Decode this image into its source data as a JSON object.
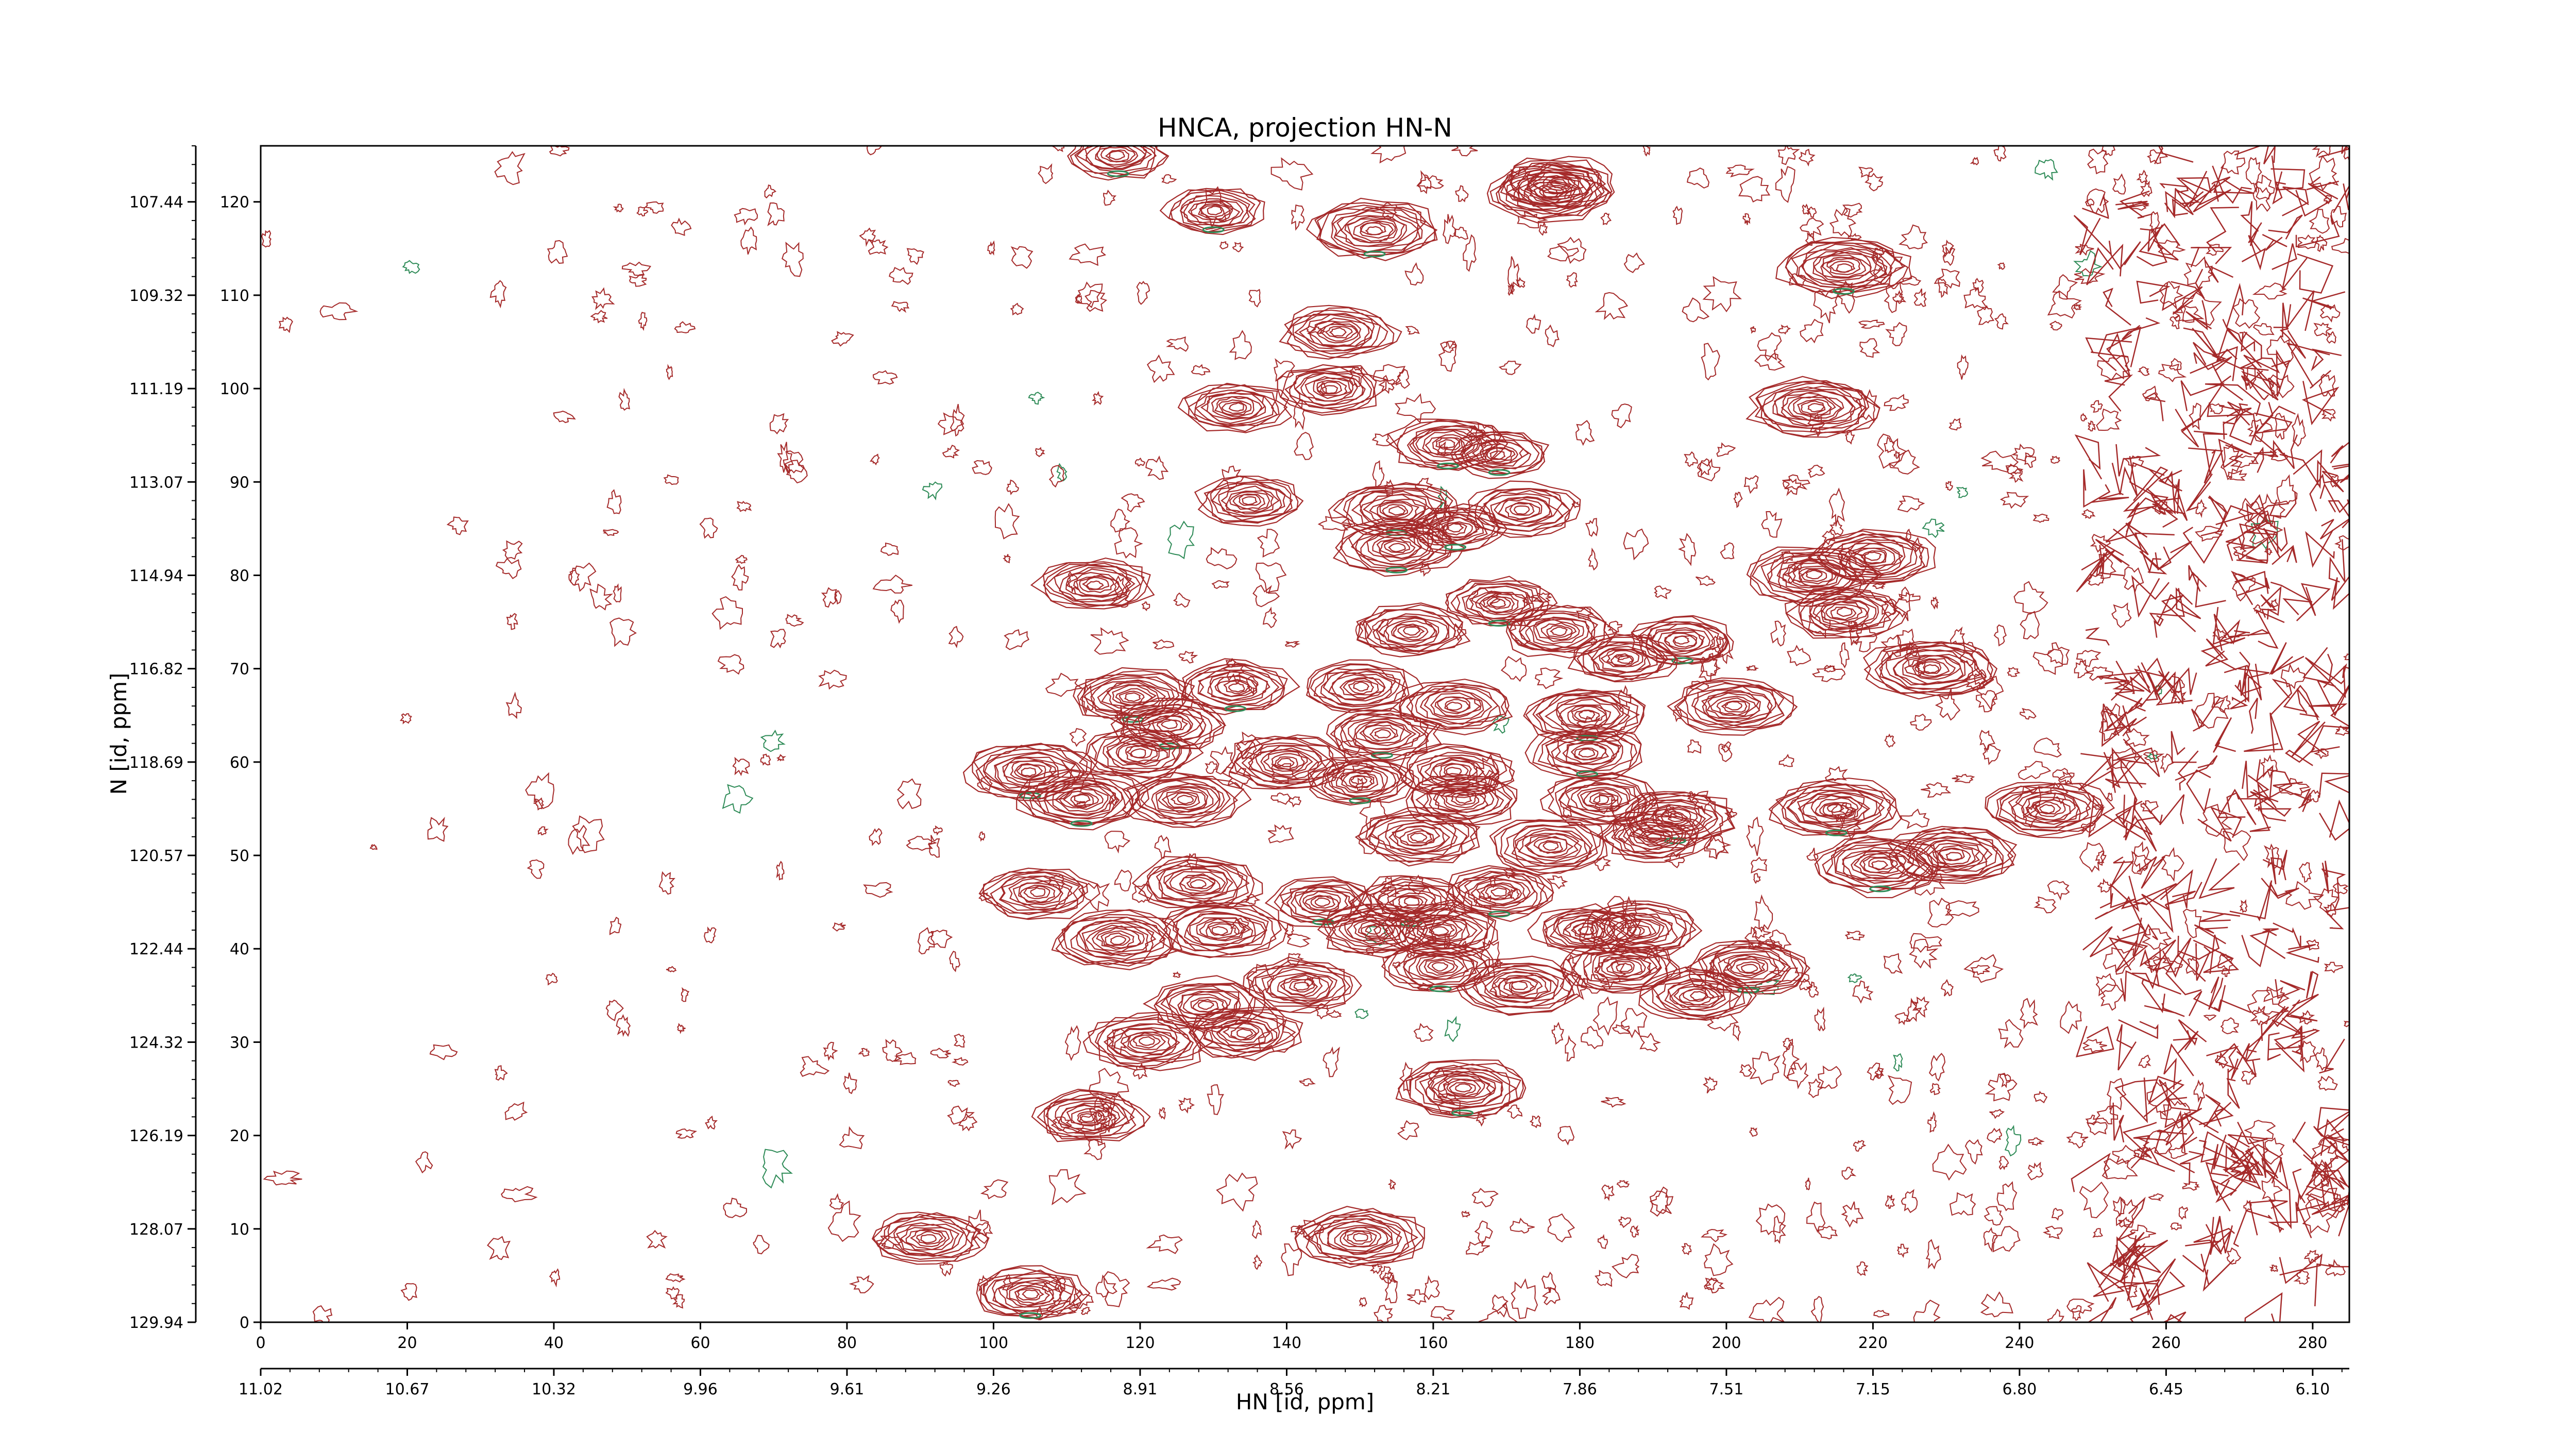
{
  "chart_data": {
    "type": "contour",
    "title": "HNCA, projection HN-N",
    "xlabel": "HN [id, ppm]",
    "ylabel": "N [id, ppm]",
    "xlim": [
      0,
      285
    ],
    "ylim": [
      0,
      126
    ],
    "x_point_ticks": [
      "0",
      "20",
      "40",
      "60",
      "80",
      "100",
      "120",
      "140",
      "160",
      "180",
      "200",
      "220",
      "240",
      "260",
      "280"
    ],
    "x_point_tick_values": [
      0,
      20,
      40,
      60,
      80,
      100,
      120,
      140,
      160,
      180,
      200,
      220,
      240,
      260,
      280
    ],
    "x_ppm_ticks": [
      "11.02",
      "10.67",
      "10.32",
      "9.96",
      "9.61",
      "9.26",
      "8.91",
      "8.56",
      "8.21",
      "7.86",
      "7.51",
      "7.15",
      "6.80",
      "6.45",
      "6.10"
    ],
    "y_point_ticks": [
      "0",
      "10",
      "20",
      "30",
      "40",
      "50",
      "60",
      "70",
      "80",
      "90",
      "100",
      "110",
      "120"
    ],
    "y_point_tick_values": [
      0,
      10,
      20,
      30,
      40,
      50,
      60,
      70,
      80,
      90,
      100,
      110,
      120
    ],
    "y_ppm_ticks": [
      "129.94",
      "128.07",
      "126.19",
      "124.32",
      "122.44",
      "120.57",
      "118.69",
      "116.82",
      "114.94",
      "113.07",
      "111.19",
      "109.32",
      "107.44"
    ],
    "y_ppm_tick_values": [
      0,
      10,
      20,
      30,
      40,
      50,
      60,
      70,
      80,
      90,
      100,
      110,
      120
    ],
    "positive_color": "#a52a2a",
    "negative_color": "#2e8b57",
    "peaks": [
      {
        "x": 152,
        "y": 117,
        "h": 1.0
      },
      {
        "x": 176,
        "y": 121,
        "h": 0.9
      },
      {
        "x": 216,
        "y": 113,
        "h": 1.0
      },
      {
        "x": 147,
        "y": 106,
        "h": 0.8
      },
      {
        "x": 146,
        "y": 100,
        "h": 0.7
      },
      {
        "x": 133,
        "y": 98,
        "h": 0.7
      },
      {
        "x": 212,
        "y": 98,
        "h": 1.0
      },
      {
        "x": 162,
        "y": 94,
        "h": 0.8
      },
      {
        "x": 169,
        "y": 93,
        "h": 0.6
      },
      {
        "x": 135,
        "y": 88,
        "h": 0.7
      },
      {
        "x": 155,
        "y": 87,
        "h": 0.9
      },
      {
        "x": 172,
        "y": 87,
        "h": 0.8
      },
      {
        "x": 155,
        "y": 83,
        "h": 0.9
      },
      {
        "x": 163,
        "y": 85,
        "h": 0.6
      },
      {
        "x": 212,
        "y": 80,
        "h": 1.0
      },
      {
        "x": 220,
        "y": 82,
        "h": 0.9
      },
      {
        "x": 114,
        "y": 79,
        "h": 0.8
      },
      {
        "x": 169,
        "y": 77,
        "h": 0.7
      },
      {
        "x": 216,
        "y": 76,
        "h": 0.8
      },
      {
        "x": 157,
        "y": 74,
        "h": 0.8
      },
      {
        "x": 177,
        "y": 74,
        "h": 0.8
      },
      {
        "x": 194,
        "y": 73,
        "h": 0.7
      },
      {
        "x": 186,
        "y": 71,
        "h": 0.7
      },
      {
        "x": 228,
        "y": 70,
        "h": 1.0
      },
      {
        "x": 119,
        "y": 67,
        "h": 0.9
      },
      {
        "x": 133,
        "y": 68,
        "h": 0.8
      },
      {
        "x": 150,
        "y": 68,
        "h": 0.8
      },
      {
        "x": 163,
        "y": 66,
        "h": 0.8
      },
      {
        "x": 181,
        "y": 65,
        "h": 0.9
      },
      {
        "x": 201,
        "y": 66,
        "h": 0.9
      },
      {
        "x": 124,
        "y": 64,
        "h": 0.8
      },
      {
        "x": 153,
        "y": 63,
        "h": 0.8
      },
      {
        "x": 181,
        "y": 61,
        "h": 0.8
      },
      {
        "x": 105,
        "y": 59,
        "h": 1.0
      },
      {
        "x": 120,
        "y": 61,
        "h": 0.8
      },
      {
        "x": 140,
        "y": 60,
        "h": 0.9
      },
      {
        "x": 163,
        "y": 59,
        "h": 0.8
      },
      {
        "x": 112,
        "y": 56,
        "h": 1.0
      },
      {
        "x": 126,
        "y": 56,
        "h": 0.9
      },
      {
        "x": 150,
        "y": 58,
        "h": 0.7
      },
      {
        "x": 164,
        "y": 56,
        "h": 0.8
      },
      {
        "x": 183,
        "y": 56,
        "h": 0.8
      },
      {
        "x": 193,
        "y": 54,
        "h": 0.9
      },
      {
        "x": 215,
        "y": 55,
        "h": 1.0
      },
      {
        "x": 244,
        "y": 55,
        "h": 0.9
      },
      {
        "x": 158,
        "y": 52,
        "h": 0.9
      },
      {
        "x": 176,
        "y": 51,
        "h": 0.9
      },
      {
        "x": 190,
        "y": 52,
        "h": 0.7
      },
      {
        "x": 221,
        "y": 49,
        "h": 1.0
      },
      {
        "x": 231,
        "y": 50,
        "h": 1.0
      },
      {
        "x": 128,
        "y": 47,
        "h": 0.9
      },
      {
        "x": 106,
        "y": 46,
        "h": 0.8
      },
      {
        "x": 145,
        "y": 45,
        "h": 0.7
      },
      {
        "x": 157,
        "y": 45,
        "h": 0.8
      },
      {
        "x": 169,
        "y": 46,
        "h": 0.8
      },
      {
        "x": 117,
        "y": 41,
        "h": 1.0
      },
      {
        "x": 131,
        "y": 42,
        "h": 0.9
      },
      {
        "x": 152,
        "y": 42,
        "h": 0.8
      },
      {
        "x": 161,
        "y": 42,
        "h": 0.9
      },
      {
        "x": 181,
        "y": 42,
        "h": 0.7
      },
      {
        "x": 188,
        "y": 42,
        "h": 0.9
      },
      {
        "x": 161,
        "y": 38,
        "h": 0.8
      },
      {
        "x": 186,
        "y": 38,
        "h": 0.8
      },
      {
        "x": 203,
        "y": 38,
        "h": 0.9
      },
      {
        "x": 142,
        "y": 36,
        "h": 0.8
      },
      {
        "x": 172,
        "y": 36,
        "h": 0.9
      },
      {
        "x": 196,
        "y": 35,
        "h": 0.8
      },
      {
        "x": 129,
        "y": 34,
        "h": 0.8
      },
      {
        "x": 121,
        "y": 30,
        "h": 0.9
      },
      {
        "x": 134,
        "y": 31,
        "h": 0.8
      },
      {
        "x": 164,
        "y": 25,
        "h": 1.0
      },
      {
        "x": 113,
        "y": 22,
        "h": 0.8
      },
      {
        "x": 91,
        "y": 9,
        "h": 0.8
      },
      {
        "x": 150,
        "y": 9,
        "h": 1.0
      },
      {
        "x": 105,
        "y": 3,
        "h": 0.8
      },
      {
        "x": 177,
        "y": 122,
        "h": 0.8
      },
      {
        "x": 117,
        "y": 125,
        "h": 0.6
      },
      {
        "x": 130,
        "y": 119,
        "h": 0.6
      }
    ]
  }
}
